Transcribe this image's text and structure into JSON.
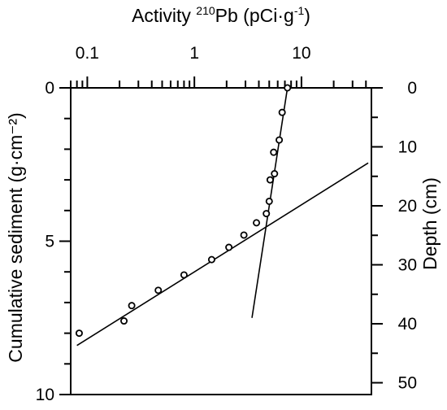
{
  "chart_data": {
    "type": "scatter",
    "title": "",
    "top_axis": {
      "label_main": "Activity ",
      "label_sup1": "210",
      "label_mid": "Pb (pCi·g",
      "label_sup2": "-1",
      "label_end": ")",
      "scale": "log",
      "range": [
        0.07,
        45
      ],
      "ticks": [
        0.1,
        1,
        10
      ],
      "tick_labels": [
        "0.1",
        "1",
        "10"
      ]
    },
    "left_axis": {
      "label": "Cumulative sediment (g·cm⁻²)",
      "range": [
        0,
        10
      ],
      "ticks": [
        0,
        5,
        10
      ],
      "tick_labels": [
        "0",
        "5",
        "10"
      ],
      "inverted": true
    },
    "right_axis": {
      "label": "Depth (cm)",
      "range": [
        0,
        52
      ],
      "ticks": [
        0,
        10,
        20,
        30,
        40,
        50
      ],
      "tick_labels": [
        "0",
        "10",
        "20",
        "30",
        "40",
        "50"
      ],
      "inverted": true
    },
    "points": [
      {
        "activity": 0.084,
        "sediment": 8.0
      },
      {
        "activity": 0.22,
        "sediment": 7.6
      },
      {
        "activity": 0.26,
        "sediment": 7.1
      },
      {
        "activity": 0.46,
        "sediment": 6.6
      },
      {
        "activity": 0.8,
        "sediment": 6.1
      },
      {
        "activity": 1.45,
        "sediment": 5.6
      },
      {
        "activity": 2.1,
        "sediment": 5.2
      },
      {
        "activity": 2.9,
        "sediment": 4.8
      },
      {
        "activity": 3.8,
        "sediment": 4.4
      },
      {
        "activity": 4.7,
        "sediment": 4.1
      },
      {
        "activity": 5.0,
        "sediment": 3.7
      },
      {
        "activity": 5.1,
        "sediment": 3.0
      },
      {
        "activity": 5.6,
        "sediment": 2.8
      },
      {
        "activity": 5.5,
        "sediment": 2.1
      },
      {
        "activity": 6.2,
        "sediment": 1.7
      },
      {
        "activity": 6.6,
        "sediment": 0.8
      },
      {
        "activity": 7.4,
        "sediment": 0.0
      }
    ],
    "fit_lines": [
      {
        "from": {
          "activity": 0.08,
          "sediment": 8.4
        },
        "to": {
          "activity": 42,
          "sediment": 2.45
        }
      },
      {
        "from": {
          "activity": 3.45,
          "sediment": 7.5
        },
        "to": {
          "activity": 7.4,
          "sediment": 0.0
        }
      }
    ]
  }
}
